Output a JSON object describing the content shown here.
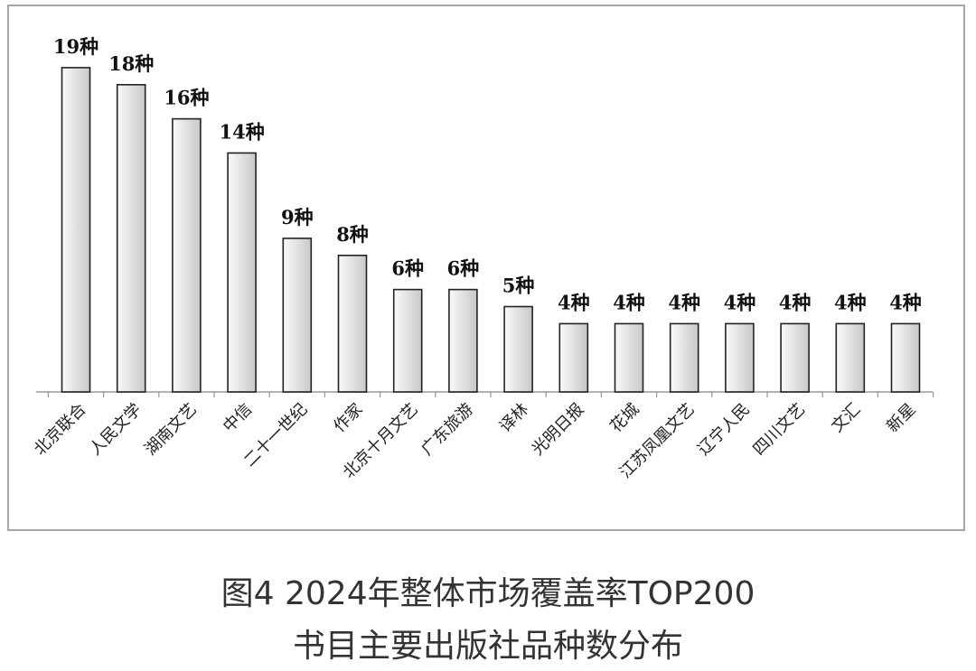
{
  "caption": {
    "line1": "图4  2024年整体市场覆盖率TOP200",
    "line2": "书目主要出版社品种数分布"
  },
  "colors": {
    "bar_fill_light": "#fafafa",
    "bar_fill_dark": "#c8c8c8",
    "bar_stroke": "#222222",
    "axis": "#9a9a9a",
    "frame": "#a6a6a6"
  },
  "chart_data": {
    "type": "bar",
    "categories": [
      "北京联合",
      "人民文学",
      "湖南文艺",
      "中信",
      "二十一世纪",
      "作家",
      "北京十月文艺",
      "广东旅游",
      "译林",
      "光明日报",
      "花城",
      "江苏凤凰文艺",
      "辽宁人民",
      "四川文艺",
      "文汇",
      "新星"
    ],
    "values": [
      19,
      18,
      16,
      14,
      9,
      8,
      6,
      6,
      5,
      4,
      4,
      4,
      4,
      4,
      4,
      4
    ],
    "data_labels": [
      "19种",
      "18种",
      "16种",
      "14种",
      "9种",
      "8种",
      "6种",
      "6种",
      "5种",
      "4种",
      "4种",
      "4种",
      "4种",
      "4种",
      "4种",
      "4种"
    ],
    "ylim": [
      0,
      20
    ],
    "grid": false,
    "legend": "none"
  }
}
